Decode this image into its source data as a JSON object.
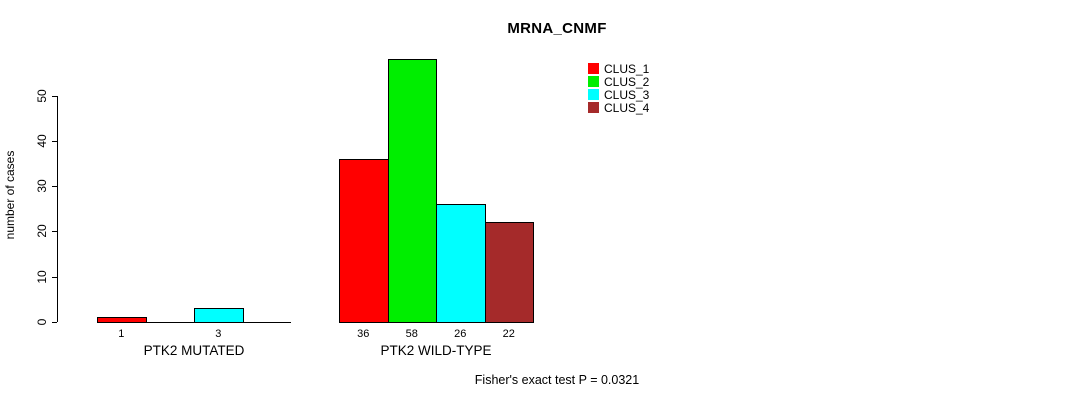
{
  "chart_data": {
    "type": "bar",
    "title": "MRNA_CNMF",
    "ylabel": "number of cases",
    "yticks": [
      0,
      10,
      20,
      30,
      40,
      50
    ],
    "ylim": [
      0,
      58
    ],
    "grid": false,
    "legend_position": "top-right",
    "categories": [
      "PTK2 MUTATED",
      "PTK2 WILD-TYPE"
    ],
    "series": [
      {
        "name": "CLUS_1",
        "color": "#ff0000",
        "values": [
          1,
          36
        ]
      },
      {
        "name": "CLUS_2",
        "color": "#00ee00",
        "values": [
          0,
          58
        ]
      },
      {
        "name": "CLUS_3",
        "color": "#00ffff",
        "values": [
          3,
          26
        ]
      },
      {
        "name": "CLUS_4",
        "color": "#a52a2a",
        "values": [
          0,
          22
        ]
      }
    ],
    "bar_value_labels": [
      [
        "1",
        "",
        "3",
        ""
      ],
      [
        "36",
        "58",
        "26",
        "22"
      ]
    ],
    "annotation": "Fisher's exact test P = 0.0321"
  }
}
